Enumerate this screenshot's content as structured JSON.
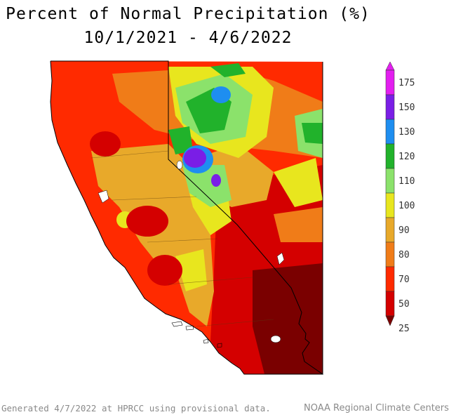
{
  "title": {
    "line1": "Percent of Normal Precipitation (%)",
    "line2": "10/1/2021 - 4/6/2022"
  },
  "legend": {
    "colors": [
      "#7a0000",
      "#d40000",
      "#ff2a00",
      "#f07c18",
      "#e8a92a",
      "#e8e61e",
      "#8be26b",
      "#21b22b",
      "#1e8ef0",
      "#7a1ee6",
      "#e31ef0"
    ],
    "labels": [
      "25",
      "50",
      "70",
      "80",
      "90",
      "100",
      "110",
      "120",
      "130",
      "150",
      "175"
    ]
  },
  "footer": {
    "left": "Generated 4/7/2022 at HPRCC using provisional data.",
    "right": "NOAA Regional Climate Centers"
  }
}
